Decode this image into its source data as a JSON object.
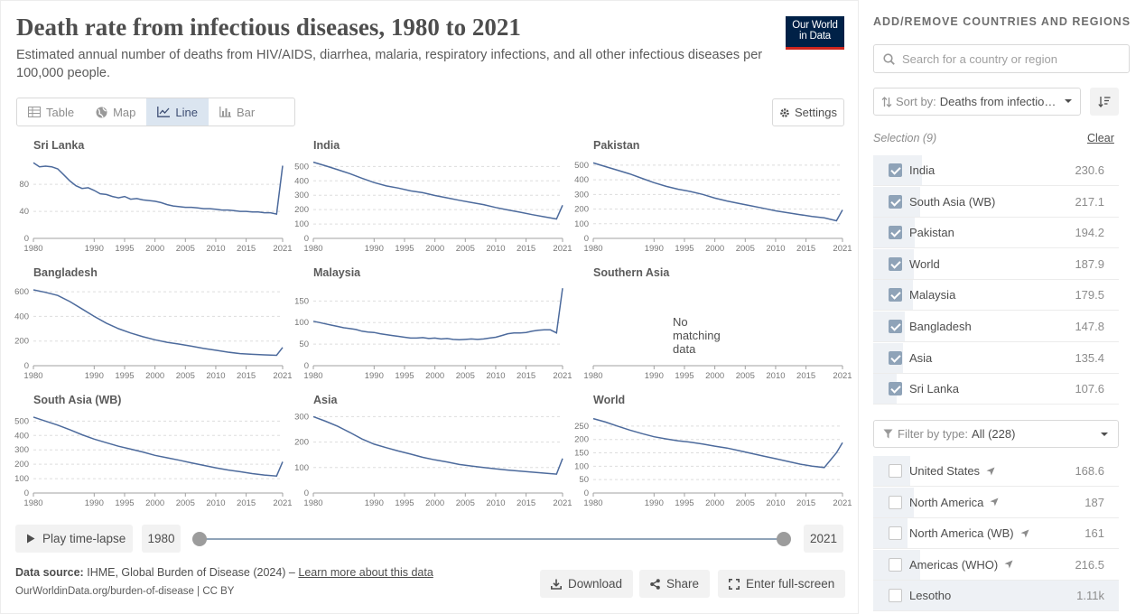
{
  "header": {
    "title": "Death rate from infectious diseases, 1980 to 2021",
    "subtitle": "Estimated annual number of deaths from HIV/AIDS, diarrhea, malaria, respiratory infections, and all other infectious diseases per 100,000 people.",
    "logo_line1": "Our World",
    "logo_line2": "in Data"
  },
  "tabs": [
    {
      "label": "Table",
      "icon": "table-icon"
    },
    {
      "label": "Map",
      "icon": "globe-icon"
    },
    {
      "label": "Line",
      "icon": "line-chart-icon",
      "active": true
    },
    {
      "label": "Bar",
      "icon": "bar-chart-icon"
    }
  ],
  "settings_label": "Settings",
  "colors": {
    "line": "#4c6a9c",
    "grid": "#dddddd",
    "accent": "#002147",
    "logo_red": "#ce261e"
  },
  "chart_data": [
    {
      "type": "line",
      "title": "Sri Lanka",
      "ylim": [
        0,
        115
      ],
      "yticks": [
        0,
        40,
        80
      ],
      "x": [
        1980,
        1981,
        1982,
        1983,
        1984,
        1985,
        1986,
        1987,
        1988,
        1989,
        1990,
        1991,
        1992,
        1993,
        1994,
        1995,
        1996,
        1997,
        1998,
        1999,
        2000,
        2001,
        2002,
        2003,
        2004,
        2005,
        2006,
        2007,
        2008,
        2009,
        2010,
        2011,
        2012,
        2013,
        2014,
        2015,
        2016,
        2017,
        2018,
        2019,
        2020,
        2021
      ],
      "y": [
        112,
        106,
        107,
        106,
        103,
        94,
        85,
        78,
        74,
        75,
        71,
        66,
        65,
        62,
        60,
        62,
        58,
        59,
        57,
        56,
        55,
        53,
        50,
        48,
        47,
        46,
        46,
        45,
        44,
        44,
        43,
        42,
        42,
        41,
        40,
        40,
        39,
        39,
        38,
        38,
        36,
        107.6
      ]
    },
    {
      "type": "line",
      "title": "India",
      "ylim": [
        0,
        540
      ],
      "yticks": [
        0,
        100,
        200,
        300,
        400,
        500
      ],
      "x": [
        1980,
        1982,
        1984,
        1986,
        1988,
        1990,
        1992,
        1994,
        1996,
        1998,
        2000,
        2002,
        2004,
        2006,
        2008,
        2010,
        2012,
        2014,
        2016,
        2018,
        2020,
        2021
      ],
      "y": [
        530,
        505,
        478,
        450,
        418,
        388,
        365,
        350,
        330,
        318,
        298,
        282,
        265,
        250,
        235,
        215,
        198,
        182,
        165,
        150,
        135,
        230.6
      ]
    },
    {
      "type": "line",
      "title": "Pakistan",
      "ylim": [
        0,
        530
      ],
      "yticks": [
        0,
        100,
        200,
        300,
        400,
        500
      ],
      "x": [
        1980,
        1982,
        1984,
        1986,
        1988,
        1990,
        1992,
        1994,
        1996,
        1998,
        2000,
        2002,
        2004,
        2006,
        2008,
        2010,
        2012,
        2014,
        2016,
        2018,
        2020,
        2021
      ],
      "y": [
        515,
        490,
        465,
        440,
        410,
        380,
        355,
        335,
        320,
        300,
        275,
        255,
        238,
        222,
        205,
        188,
        175,
        162,
        150,
        140,
        120,
        194.2
      ]
    },
    {
      "type": "line",
      "title": "Bangladesh",
      "ylim": [
        0,
        630
      ],
      "yticks": [
        0,
        200,
        400,
        600
      ],
      "x": [
        1980,
        1982,
        1984,
        1986,
        1988,
        1990,
        1992,
        1994,
        1996,
        1998,
        2000,
        2002,
        2004,
        2006,
        2008,
        2010,
        2012,
        2014,
        2016,
        2018,
        2020,
        2021
      ],
      "y": [
        615,
        595,
        570,
        520,
        460,
        400,
        345,
        300,
        265,
        235,
        210,
        190,
        175,
        158,
        140,
        125,
        110,
        98,
        92,
        88,
        84,
        147.8
      ]
    },
    {
      "type": "line",
      "title": "Malaysia",
      "ylim": [
        0,
        180
      ],
      "yticks": [
        0,
        50,
        100,
        150
      ],
      "x": [
        1980,
        1981,
        1982,
        1983,
        1984,
        1985,
        1986,
        1987,
        1988,
        1989,
        1990,
        1991,
        1992,
        1993,
        1994,
        1995,
        1996,
        1997,
        1998,
        1999,
        2000,
        2001,
        2002,
        2003,
        2004,
        2005,
        2006,
        2007,
        2008,
        2009,
        2010,
        2011,
        2012,
        2013,
        2014,
        2015,
        2016,
        2017,
        2018,
        2019,
        2020,
        2021
      ],
      "y": [
        103,
        100,
        97,
        94,
        91,
        88,
        86,
        84,
        80,
        78,
        77,
        74,
        72,
        70,
        68,
        66,
        64,
        64,
        65,
        63,
        64,
        62,
        63,
        61,
        60,
        61,
        62,
        61,
        62,
        64,
        66,
        70,
        74,
        76,
        76,
        77,
        80,
        82,
        83,
        83,
        76,
        179.5
      ]
    },
    {
      "type": "line",
      "title": "Southern Asia",
      "empty_label": "No matching data"
    },
    {
      "type": "line",
      "title": "South Asia (WB)",
      "ylim": [
        0,
        540
      ],
      "yticks": [
        0,
        100,
        200,
        300,
        400,
        500
      ],
      "x": [
        1980,
        1982,
        1984,
        1986,
        1988,
        1990,
        1992,
        1994,
        1996,
        1998,
        2000,
        2002,
        2004,
        2006,
        2008,
        2010,
        2012,
        2014,
        2016,
        2018,
        2020,
        2021
      ],
      "y": [
        528,
        500,
        472,
        440,
        405,
        375,
        350,
        325,
        305,
        285,
        262,
        245,
        228,
        210,
        192,
        175,
        160,
        148,
        135,
        125,
        118,
        217.1
      ]
    },
    {
      "type": "line",
      "title": "Asia",
      "ylim": [
        0,
        305
      ],
      "yticks": [
        0,
        100,
        200,
        300
      ],
      "x": [
        1980,
        1982,
        1984,
        1986,
        1988,
        1990,
        1992,
        1994,
        1996,
        1998,
        2000,
        2002,
        2004,
        2006,
        2008,
        2010,
        2012,
        2014,
        2016,
        2018,
        2020,
        2021
      ],
      "y": [
        300,
        282,
        262,
        238,
        212,
        192,
        178,
        165,
        153,
        140,
        130,
        122,
        112,
        106,
        100,
        95,
        90,
        86,
        82,
        78,
        74,
        135.4
      ]
    },
    {
      "type": "line",
      "title": "World",
      "ylim": [
        0,
        290
      ],
      "yticks": [
        0,
        50,
        100,
        150,
        200,
        250
      ],
      "x": [
        1980,
        1982,
        1984,
        1986,
        1988,
        1990,
        1992,
        1994,
        1996,
        1998,
        2000,
        2002,
        2004,
        2006,
        2008,
        2010,
        2012,
        2014,
        2016,
        2018,
        2020,
        2021
      ],
      "y": [
        278,
        265,
        250,
        235,
        222,
        210,
        202,
        195,
        190,
        183,
        175,
        168,
        158,
        148,
        138,
        128,
        118,
        108,
        100,
        95,
        150,
        187.9
      ]
    }
  ],
  "x_ticks": [
    1980,
    1990,
    1995,
    2000,
    2005,
    2010,
    2015,
    2021
  ],
  "timeline": {
    "play_label": "Play time-lapse",
    "start": "1980",
    "end": "2021",
    "start_fraction": 0,
    "end_fraction": 1
  },
  "footer": {
    "source_label": "Data source:",
    "source_text": "IHME, Global Burden of Disease (2024) – ",
    "learn_more": "Learn more about this data",
    "url": "OurWorldinData.org/burden-of-disease | CC BY"
  },
  "actions": {
    "download": "Download",
    "share": "Share",
    "fullscreen": "Enter full-screen"
  },
  "sidebar": {
    "title": "ADD/REMOVE COUNTRIES AND REGIONS",
    "search_placeholder": "Search for a country or region",
    "sort_label": "Sort by:",
    "sort_value": "Deaths from infectio…",
    "selection_label": "Selection (9)",
    "clear_label": "Clear",
    "selected": [
      {
        "name": "India",
        "value": "230.6",
        "fraction": 0.2
      },
      {
        "name": "South Asia (WB)",
        "value": "217.1",
        "fraction": 0.19
      },
      {
        "name": "Pakistan",
        "value": "194.2",
        "fraction": 0.17
      },
      {
        "name": "World",
        "value": "187.9",
        "fraction": 0.165
      },
      {
        "name": "Malaysia",
        "value": "179.5",
        "fraction": 0.16
      },
      {
        "name": "Bangladesh",
        "value": "147.8",
        "fraction": 0.13
      },
      {
        "name": "Asia",
        "value": "135.4",
        "fraction": 0.12
      },
      {
        "name": "Sri Lanka",
        "value": "107.6",
        "fraction": 0.095
      }
    ],
    "filter_label": "Filter by type:",
    "filter_value": "All (228)",
    "others": [
      {
        "name": "United States",
        "value": "168.6",
        "fraction": 0.15,
        "pin": true
      },
      {
        "name": "North America",
        "value": "187",
        "fraction": 0.165,
        "pin": true
      },
      {
        "name": "North America (WB)",
        "value": "161",
        "fraction": 0.14,
        "pin": true
      },
      {
        "name": "Americas (WHO)",
        "value": "216.5",
        "fraction": 0.19,
        "pin": true
      },
      {
        "name": "Lesotho",
        "value": "1.11k",
        "fraction": 1.0,
        "pin": false
      }
    ]
  }
}
